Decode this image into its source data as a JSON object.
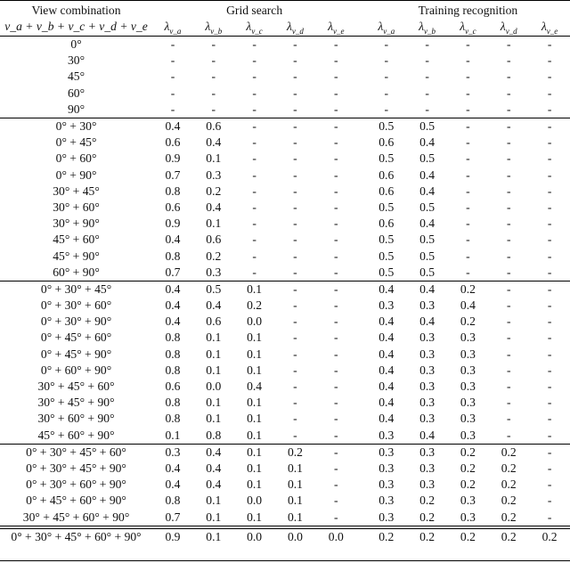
{
  "header": {
    "col0_top": "View combination",
    "col0_bottom": "v_a + v_b + v_c + v_d + v_e",
    "grid_label": "Grid search",
    "train_label": "Training recognition",
    "lambda_subs": [
      "v_a",
      "v_b",
      "v_c",
      "v_d",
      "v_e"
    ]
  },
  "groups": [
    {
      "rows": [
        {
          "view": "0°",
          "grid": [
            "-",
            "-",
            "-",
            "-",
            "-"
          ],
          "train": [
            "-",
            "-",
            "-",
            "-",
            "-"
          ]
        },
        {
          "view": "30°",
          "grid": [
            "-",
            "-",
            "-",
            "-",
            "-"
          ],
          "train": [
            "-",
            "-",
            "-",
            "-",
            "-"
          ]
        },
        {
          "view": "45°",
          "grid": [
            "-",
            "-",
            "-",
            "-",
            "-"
          ],
          "train": [
            "-",
            "-",
            "-",
            "-",
            "-"
          ]
        },
        {
          "view": "60°",
          "grid": [
            "-",
            "-",
            "-",
            "-",
            "-"
          ],
          "train": [
            "-",
            "-",
            "-",
            "-",
            "-"
          ]
        },
        {
          "view": "90°",
          "grid": [
            "-",
            "-",
            "-",
            "-",
            "-"
          ],
          "train": [
            "-",
            "-",
            "-",
            "-",
            "-"
          ]
        }
      ]
    },
    {
      "rows": [
        {
          "view": "0° + 30°",
          "grid": [
            "0.4",
            "0.6",
            "-",
            "-",
            "-"
          ],
          "train": [
            "0.5",
            "0.5",
            "-",
            "-",
            "-"
          ]
        },
        {
          "view": "0° + 45°",
          "grid": [
            "0.6",
            "0.4",
            "-",
            "-",
            "-"
          ],
          "train": [
            "0.6",
            "0.4",
            "-",
            "-",
            "-"
          ]
        },
        {
          "view": "0° + 60°",
          "grid": [
            "0.9",
            "0.1",
            "-",
            "-",
            "-"
          ],
          "train": [
            "0.5",
            "0.5",
            "-",
            "-",
            "-"
          ]
        },
        {
          "view": "0° + 90°",
          "grid": [
            "0.7",
            "0.3",
            "-",
            "-",
            "-"
          ],
          "train": [
            "0.6",
            "0.4",
            "-",
            "-",
            "-"
          ]
        },
        {
          "view": "30° + 45°",
          "grid": [
            "0.8",
            "0.2",
            "-",
            "-",
            "-"
          ],
          "train": [
            "0.6",
            "0.4",
            "-",
            "-",
            "-"
          ]
        },
        {
          "view": "30° + 60°",
          "grid": [
            "0.6",
            "0.4",
            "-",
            "-",
            "-"
          ],
          "train": [
            "0.5",
            "0.5",
            "-",
            "-",
            "-"
          ]
        },
        {
          "view": "30° + 90°",
          "grid": [
            "0.9",
            "0.1",
            "-",
            "-",
            "-"
          ],
          "train": [
            "0.6",
            "0.4",
            "-",
            "-",
            "-"
          ]
        },
        {
          "view": "45° + 60°",
          "grid": [
            "0.4",
            "0.6",
            "-",
            "-",
            "-"
          ],
          "train": [
            "0.5",
            "0.5",
            "-",
            "-",
            "-"
          ]
        },
        {
          "view": "45° + 90°",
          "grid": [
            "0.8",
            "0.2",
            "-",
            "-",
            "-"
          ],
          "train": [
            "0.5",
            "0.5",
            "-",
            "-",
            "-"
          ]
        },
        {
          "view": "60° + 90°",
          "grid": [
            "0.7",
            "0.3",
            "-",
            "-",
            "-"
          ],
          "train": [
            "0.5",
            "0.5",
            "-",
            "-",
            "-"
          ]
        }
      ]
    },
    {
      "rows": [
        {
          "view": "0° + 30° + 45°",
          "grid": [
            "0.4",
            "0.5",
            "0.1",
            "-",
            "-"
          ],
          "train": [
            "0.4",
            "0.4",
            "0.2",
            "-",
            "-"
          ]
        },
        {
          "view": "0° + 30° + 60°",
          "grid": [
            "0.4",
            "0.4",
            "0.2",
            "-",
            "-"
          ],
          "train": [
            "0.3",
            "0.3",
            "0.4",
            "-",
            "-"
          ]
        },
        {
          "view": "0° + 30° + 90°",
          "grid": [
            "0.4",
            "0.6",
            "0.0",
            "-",
            "-"
          ],
          "train": [
            "0.4",
            "0.4",
            "0.2",
            "-",
            "-"
          ]
        },
        {
          "view": "0° + 45° + 60°",
          "grid": [
            "0.8",
            "0.1",
            "0.1",
            "-",
            "-"
          ],
          "train": [
            "0.4",
            "0.3",
            "0.3",
            "-",
            "-"
          ]
        },
        {
          "view": "0° + 45° + 90°",
          "grid": [
            "0.8",
            "0.1",
            "0.1",
            "-",
            "-"
          ],
          "train": [
            "0.4",
            "0.3",
            "0.3",
            "-",
            "-"
          ]
        },
        {
          "view": "0° + 60° + 90°",
          "grid": [
            "0.8",
            "0.1",
            "0.1",
            "-",
            "-"
          ],
          "train": [
            "0.4",
            "0.3",
            "0.3",
            "-",
            "-"
          ]
        },
        {
          "view": "30° + 45° + 60°",
          "grid": [
            "0.6",
            "0.0",
            "0.4",
            "-",
            "-"
          ],
          "train": [
            "0.4",
            "0.3",
            "0.3",
            "-",
            "-"
          ]
        },
        {
          "view": "30° + 45° + 90°",
          "grid": [
            "0.8",
            "0.1",
            "0.1",
            "-",
            "-"
          ],
          "train": [
            "0.4",
            "0.3",
            "0.3",
            "-",
            "-"
          ]
        },
        {
          "view": "30° + 60° + 90°",
          "grid": [
            "0.8",
            "0.1",
            "0.1",
            "-",
            "-"
          ],
          "train": [
            "0.4",
            "0.3",
            "0.3",
            "-",
            "-"
          ]
        },
        {
          "view": "45° + 60° + 90°",
          "grid": [
            "0.1",
            "0.8",
            "0.1",
            "-",
            "-"
          ],
          "train": [
            "0.3",
            "0.4",
            "0.3",
            "-",
            "-"
          ]
        }
      ]
    },
    {
      "rows": [
        {
          "view": "0° + 30° + 45° + 60°",
          "grid": [
            "0.3",
            "0.4",
            "0.1",
            "0.2",
            "-"
          ],
          "train": [
            "0.3",
            "0.3",
            "0.2",
            "0.2",
            "-"
          ]
        },
        {
          "view": "0° + 30° + 45° + 90°",
          "grid": [
            "0.4",
            "0.4",
            "0.1",
            "0.1",
            "-"
          ],
          "train": [
            "0.3",
            "0.3",
            "0.2",
            "0.2",
            "-"
          ]
        },
        {
          "view": "0° + 30° + 60° + 90°",
          "grid": [
            "0.4",
            "0.4",
            "0.1",
            "0.1",
            "-"
          ],
          "train": [
            "0.3",
            "0.3",
            "0.2",
            "0.2",
            "-"
          ]
        },
        {
          "view": "0° + 45° + 60° + 90°",
          "grid": [
            "0.8",
            "0.1",
            "0.0",
            "0.1",
            "-"
          ],
          "train": [
            "0.3",
            "0.2",
            "0.3",
            "0.2",
            "-"
          ]
        },
        {
          "view": "30° + 45° + 60° + 90°",
          "grid": [
            "0.7",
            "0.1",
            "0.1",
            "0.1",
            "-"
          ],
          "train": [
            "0.3",
            "0.2",
            "0.3",
            "0.2",
            "-"
          ]
        }
      ]
    },
    {
      "rows": [
        {
          "view": "0° + 30° + 45° + 60° + 90°",
          "grid": [
            "0.9",
            "0.1",
            "0.0",
            "0.0",
            "0.0"
          ],
          "train": [
            "0.2",
            "0.2",
            "0.2",
            "0.2",
            "0.2"
          ]
        }
      ]
    }
  ]
}
